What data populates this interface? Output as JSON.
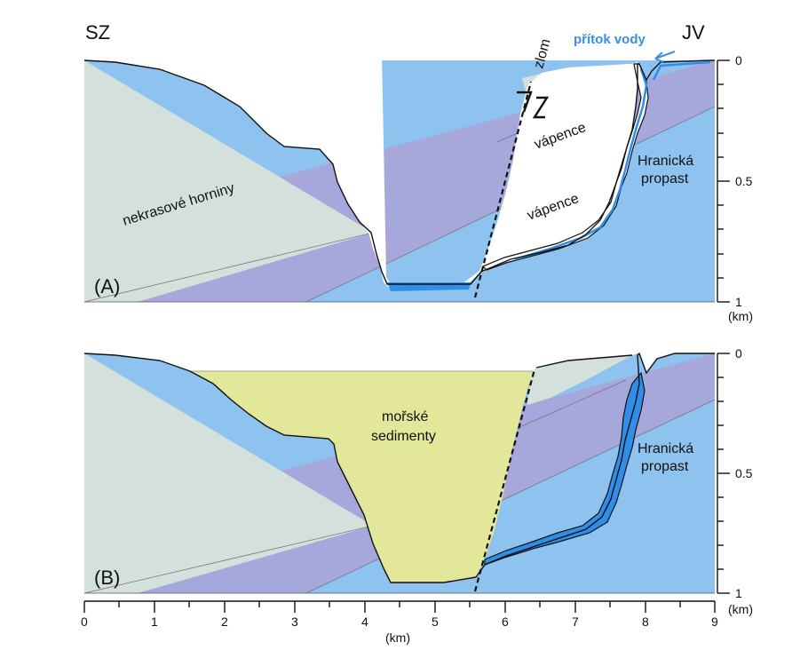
{
  "labels": {
    "northwest": "SZ",
    "southeast": "JV",
    "fault": "zlom",
    "water_inflow": "přítok vody",
    "non_karst_rocks": "nekrasové horniny",
    "limestone_upper": "vápence",
    "limestone_lower": "vápence",
    "abyss_a_line1": "Hranická",
    "abyss_a_line2": "propast",
    "abyss_b_line1": "Hranická",
    "abyss_b_line2": "propast",
    "marine_line1": "mořské",
    "marine_line2": "sedimenty",
    "panel_a": "(A)",
    "panel_b": "(B)",
    "km_right_a": "(km)",
    "km_right_b": "(km)",
    "km_bottom": "(km)"
  },
  "axes": {
    "depth_ticks": [
      "0",
      "0.5",
      "1"
    ],
    "distance_ticks": [
      "0",
      "1",
      "2",
      "3",
      "4",
      "5",
      "6",
      "7",
      "8",
      "9"
    ]
  },
  "colors": {
    "non_karst": "#d3e0dc",
    "limestone_upper": "#a6a8dc",
    "limestone_lower": "#8ec2ef",
    "water": "#2e8ee8",
    "marine_sediments": "#e2e79a"
  }
}
